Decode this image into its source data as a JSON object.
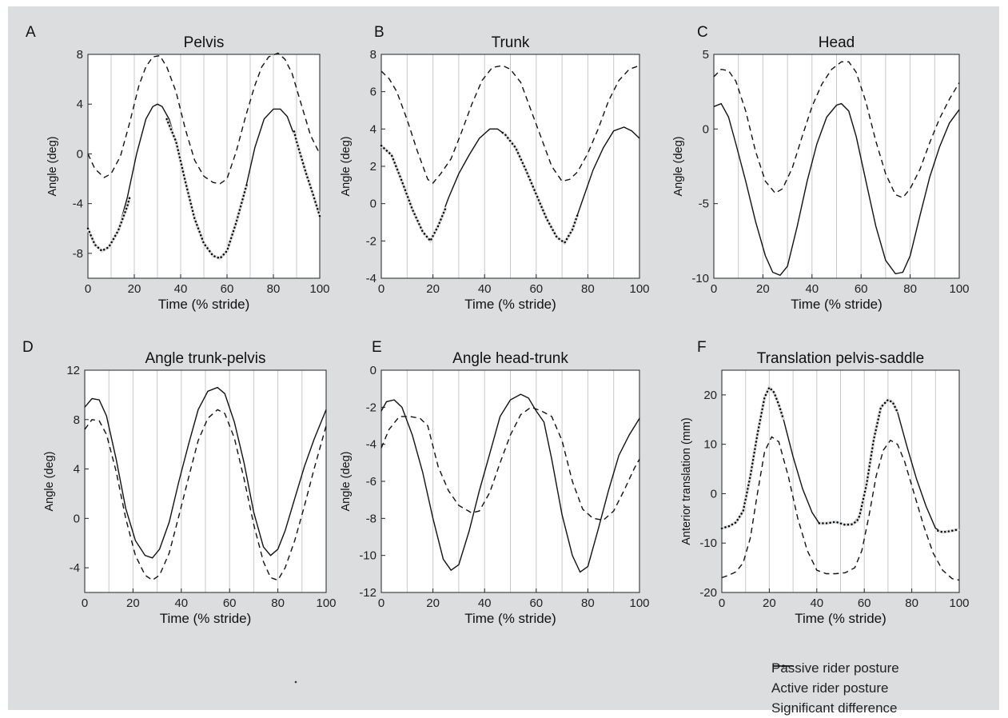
{
  "figure": {
    "background": "#dcdddf",
    "plot_background": "#ffffff",
    "gridline_color": "#c8c8c8",
    "line_color": "#111111"
  },
  "legend": {
    "items": [
      {
        "label": "Passive rider posture",
        "style": "dashed"
      },
      {
        "label": "Active rider posture",
        "style": "solid"
      },
      {
        "label": "Significant difference",
        "style": "dotted"
      }
    ]
  },
  "chart_data": [
    {
      "panel": "A",
      "type": "line",
      "title": "Pelvis",
      "xlabel": "Time (% stride)",
      "ylabel": "Angle (deg)",
      "xlim": [
        0,
        100
      ],
      "ylim": [
        -10,
        8
      ],
      "xticks": [
        0,
        20,
        40,
        60,
        80,
        100
      ],
      "yticks": [
        -8,
        -4,
        0,
        4,
        8
      ],
      "grid": true,
      "series": [
        {
          "style": "dashed",
          "x": [
            0,
            3,
            7,
            10,
            14,
            18,
            22,
            25,
            28,
            31,
            34,
            38,
            42,
            46,
            50,
            54,
            57,
            60,
            64,
            68,
            72,
            75,
            78,
            82,
            85,
            88,
            92,
            96,
            100
          ],
          "y": [
            0,
            -1.2,
            -1.9,
            -1.6,
            -0.2,
            2.5,
            5.5,
            7.0,
            7.8,
            7.9,
            7.0,
            5.0,
            2.0,
            -0.5,
            -1.8,
            -2.3,
            -2.4,
            -2.0,
            0.2,
            3.0,
            5.5,
            7.0,
            7.8,
            8.1,
            7.6,
            6.5,
            4.0,
            1.5,
            0.0
          ]
        },
        {
          "style": "solid",
          "x": [
            0,
            3,
            6,
            9,
            13,
            17,
            21,
            25,
            28,
            30,
            32,
            35,
            38,
            42,
            46,
            50,
            54,
            57,
            60,
            64,
            68,
            72,
            76,
            80,
            83,
            86,
            90,
            94,
            97,
            100
          ],
          "y": [
            -6.0,
            -7.3,
            -7.8,
            -7.5,
            -6.2,
            -3.5,
            0.0,
            2.8,
            3.8,
            4.0,
            3.8,
            2.8,
            1.0,
            -2.2,
            -5.2,
            -7.2,
            -8.2,
            -8.4,
            -7.8,
            -5.5,
            -2.8,
            0.5,
            2.8,
            3.6,
            3.6,
            3.0,
            1.0,
            -1.5,
            -3.2,
            -5.0
          ]
        },
        {
          "style": "dotted",
          "x": [
            0,
            3,
            6,
            9,
            13,
            17,
            18,
            34,
            36,
            38,
            42,
            46,
            50,
            54,
            57,
            60,
            64,
            68,
            68.5,
            89,
            90,
            94,
            97,
            100
          ],
          "y": [
            -6.0,
            -7.3,
            -7.8,
            -7.5,
            -6.2,
            -4.2,
            -3.5,
            2.8,
            1.9,
            1.0,
            -2.2,
            -5.2,
            -7.2,
            -8.2,
            -8.4,
            -7.8,
            -5.5,
            -2.8,
            -2.5,
            1.8,
            1.0,
            -1.5,
            -3.2,
            -5.0
          ]
        }
      ]
    },
    {
      "panel": "B",
      "type": "line",
      "title": "Trunk",
      "xlabel": "Time (% stride)",
      "ylabel": "Angle (deg)",
      "xlim": [
        0,
        100
      ],
      "ylim": [
        -4,
        8
      ],
      "xticks": [
        0,
        20,
        40,
        60,
        80,
        100
      ],
      "yticks": [
        -4,
        -2,
        0,
        2,
        4,
        6,
        8
      ],
      "grid": true,
      "series": [
        {
          "style": "dashed",
          "x": [
            0,
            3,
            6,
            10,
            14,
            18,
            20,
            23,
            27,
            31,
            35,
            39,
            43,
            47,
            50,
            54,
            58,
            62,
            66,
            70,
            73,
            76,
            80,
            84,
            88,
            92,
            96,
            100
          ],
          "y": [
            7.1,
            6.7,
            6.0,
            4.5,
            2.8,
            1.3,
            1.1,
            1.6,
            2.4,
            3.8,
            5.3,
            6.6,
            7.3,
            7.4,
            7.2,
            6.5,
            5.0,
            3.5,
            2.0,
            1.2,
            1.3,
            1.7,
            2.7,
            4.0,
            5.5,
            6.6,
            7.2,
            7.4
          ]
        },
        {
          "style": "solid",
          "x": [
            0,
            4,
            8,
            12,
            16,
            19,
            22,
            26,
            30,
            34,
            38,
            42,
            45,
            48,
            52,
            56,
            60,
            64,
            68,
            71,
            74,
            78,
            82,
            86,
            90,
            94,
            97,
            100
          ],
          "y": [
            3.1,
            2.6,
            1.2,
            -0.3,
            -1.5,
            -2.0,
            -1.2,
            0.3,
            1.6,
            2.6,
            3.5,
            4.0,
            4.0,
            3.7,
            3.0,
            1.8,
            0.5,
            -0.8,
            -1.8,
            -2.1,
            -1.4,
            0.2,
            1.8,
            3.0,
            3.9,
            4.1,
            3.9,
            3.5
          ]
        },
        {
          "style": "dotted",
          "x": [
            0,
            4,
            8,
            12,
            16,
            19,
            22,
            25,
            47,
            48,
            52,
            56,
            60,
            64,
            68,
            71,
            74,
            76
          ],
          "y": [
            3.1,
            2.6,
            1.2,
            -0.3,
            -1.5,
            -2.0,
            -1.2,
            -0.2,
            3.8,
            3.7,
            3.0,
            1.8,
            0.5,
            -0.8,
            -1.8,
            -2.1,
            -1.4,
            -0.6
          ]
        }
      ]
    },
    {
      "panel": "C",
      "type": "line",
      "title": "Head",
      "xlabel": "Time (% stride)",
      "ylabel": "Angle (deg)",
      "xlim": [
        0,
        100
      ],
      "ylim": [
        -10,
        5
      ],
      "xticks": [
        0,
        20,
        40,
        60,
        80,
        100
      ],
      "yticks": [
        -10,
        -5,
        0,
        5
      ],
      "grid": true,
      "series": [
        {
          "style": "dashed",
          "x": [
            0,
            3,
            6,
            9,
            13,
            17,
            21,
            25,
            28,
            32,
            36,
            40,
            44,
            48,
            52,
            55,
            58,
            62,
            66,
            70,
            74,
            77,
            80,
            84,
            88,
            92,
            96,
            100
          ],
          "y": [
            3.5,
            4.0,
            3.9,
            3.2,
            1.2,
            -1.5,
            -3.5,
            -4.3,
            -4.0,
            -2.6,
            -0.5,
            1.5,
            3.0,
            4.0,
            4.5,
            4.5,
            3.8,
            1.8,
            -0.8,
            -3.0,
            -4.4,
            -4.6,
            -4.0,
            -2.7,
            -0.9,
            0.7,
            2.0,
            3.1
          ]
        },
        {
          "style": "solid",
          "x": [
            0,
            3,
            6,
            9,
            13,
            17,
            21,
            24,
            27,
            30,
            34,
            38,
            42,
            46,
            50,
            52,
            55,
            58,
            62,
            66,
            70,
            74,
            77,
            80,
            84,
            88,
            92,
            96,
            100
          ],
          "y": [
            1.5,
            1.7,
            0.8,
            -1.0,
            -3.5,
            -6.2,
            -8.5,
            -9.6,
            -9.8,
            -9.2,
            -6.5,
            -3.5,
            -1.0,
            0.8,
            1.6,
            1.7,
            1.2,
            -0.5,
            -3.5,
            -6.5,
            -8.8,
            -9.7,
            -9.6,
            -8.5,
            -5.8,
            -3.2,
            -1.2,
            0.4,
            1.3
          ]
        }
      ]
    },
    {
      "panel": "D",
      "type": "line",
      "title": "Angle trunk-pelvis",
      "xlabel": "Time (% stride)",
      "ylabel": "Angle (deg)",
      "xlim": [
        0,
        100
      ],
      "ylim": [
        -6,
        12
      ],
      "xticks": [
        0,
        20,
        40,
        60,
        80,
        100
      ],
      "yticks": [
        -4,
        0,
        4,
        8,
        12
      ],
      "grid": true,
      "series": [
        {
          "style": "dashed",
          "x": [
            0,
            3,
            6,
            9,
            13,
            17,
            21,
            25,
            28,
            31,
            35,
            39,
            43,
            47,
            51,
            55,
            58,
            62,
            66,
            70,
            74,
            77,
            80,
            83,
            87,
            91,
            95,
            100
          ],
          "y": [
            7.2,
            8.0,
            7.9,
            6.8,
            3.8,
            0.0,
            -3.0,
            -4.6,
            -5.0,
            -4.6,
            -2.8,
            0.2,
            3.3,
            6.3,
            8.1,
            8.8,
            8.5,
            6.5,
            3.2,
            -0.5,
            -3.5,
            -4.8,
            -5.0,
            -4.0,
            -1.8,
            1.0,
            4.0,
            7.5
          ]
        },
        {
          "style": "solid",
          "x": [
            0,
            3,
            6,
            9,
            13,
            17,
            21,
            25,
            28,
            31,
            35,
            39,
            43,
            47,
            51,
            55,
            58,
            62,
            66,
            70,
            74,
            77,
            80,
            83,
            87,
            91,
            95,
            100
          ],
          "y": [
            9.0,
            9.7,
            9.6,
            8.3,
            4.8,
            0.8,
            -1.8,
            -3.0,
            -3.2,
            -2.5,
            -0.3,
            3.0,
            6.0,
            8.8,
            10.3,
            10.6,
            10.1,
            7.8,
            4.5,
            0.5,
            -2.3,
            -3.0,
            -2.5,
            -1.0,
            1.6,
            4.2,
            6.4,
            8.8
          ]
        }
      ]
    },
    {
      "panel": "E",
      "type": "line",
      "title": "Angle head-trunk",
      "xlabel": "Time (% stride)",
      "ylabel": "Angle (deg)",
      "xlim": [
        0,
        100
      ],
      "ylim": [
        -12,
        0
      ],
      "xticks": [
        0,
        20,
        40,
        60,
        80,
        100
      ],
      "yticks": [
        -12,
        -10,
        -8,
        -6,
        -4,
        -2,
        0
      ],
      "grid": true,
      "series": [
        {
          "style": "dashed",
          "x": [
            0,
            3,
            7,
            11,
            15,
            18,
            22,
            26,
            30,
            35,
            38,
            42,
            46,
            50,
            54,
            58,
            62,
            66,
            70,
            74,
            78,
            82,
            86,
            90,
            94,
            98,
            100
          ],
          "y": [
            -4.2,
            -3.2,
            -2.5,
            -2.5,
            -2.6,
            -3.0,
            -5.2,
            -6.5,
            -7.3,
            -7.7,
            -7.6,
            -6.6,
            -5.0,
            -3.5,
            -2.4,
            -2.0,
            -2.2,
            -2.5,
            -3.8,
            -6.0,
            -7.5,
            -8.0,
            -8.1,
            -7.6,
            -6.5,
            -5.3,
            -4.8
          ]
        },
        {
          "style": "solid",
          "x": [
            0,
            2,
            5,
            8,
            12,
            16,
            20,
            24,
            27,
            30,
            34,
            38,
            42,
            46,
            50,
            54,
            57,
            60,
            63,
            66,
            70,
            74,
            77,
            80,
            84,
            88,
            92,
            96,
            100
          ],
          "y": [
            -2.2,
            -1.7,
            -1.6,
            -2.0,
            -3.5,
            -5.5,
            -8.0,
            -10.2,
            -10.8,
            -10.5,
            -8.7,
            -6.5,
            -4.5,
            -2.5,
            -1.6,
            -1.3,
            -1.5,
            -2.2,
            -2.8,
            -4.8,
            -7.8,
            -10.0,
            -10.9,
            -10.6,
            -8.6,
            -6.5,
            -4.6,
            -3.5,
            -2.6
          ]
        }
      ]
    },
    {
      "panel": "F",
      "type": "line",
      "title": "Translation pelvis-saddle",
      "xlabel": "Time (% stride)",
      "ylabel": "Anterior translation (mm)",
      "xlim": [
        0,
        100
      ],
      "ylim": [
        -20,
        25
      ],
      "xticks": [
        0,
        20,
        40,
        60,
        80,
        100
      ],
      "yticks": [
        -20,
        -10,
        0,
        10,
        20
      ],
      "grid": true,
      "series": [
        {
          "style": "dashed",
          "x": [
            0,
            3,
            6,
            9,
            12,
            15,
            18,
            21,
            24,
            28,
            32,
            36,
            40,
            44,
            48,
            52,
            56,
            59,
            62,
            65,
            68,
            71,
            74,
            77,
            81,
            85,
            89,
            93,
            97,
            100
          ],
          "y": [
            -17.0,
            -16.5,
            -15.8,
            -14.0,
            -9.0,
            0.0,
            8.5,
            11.5,
            10.5,
            3.5,
            -5.0,
            -11.5,
            -15.5,
            -16.2,
            -16.2,
            -16.0,
            -15.0,
            -11.5,
            -4.5,
            3.5,
            8.8,
            10.8,
            10.0,
            6.5,
            0.0,
            -6.5,
            -12.0,
            -15.5,
            -17.2,
            -17.5
          ]
        },
        {
          "style": "solid",
          "x": [
            0,
            3,
            6,
            9,
            12,
            15,
            18,
            20,
            22,
            24,
            26,
            30,
            34,
            38,
            41,
            44,
            48,
            52,
            55,
            58,
            61,
            64,
            67,
            70,
            72,
            74,
            78,
            82,
            86,
            90,
            93,
            96,
            100
          ],
          "y": [
            -7.0,
            -6.6,
            -5.8,
            -3.5,
            3.5,
            12.0,
            19.5,
            21.5,
            20.5,
            18.0,
            15.0,
            7.5,
            1.0,
            -3.8,
            -6.0,
            -6.0,
            -5.7,
            -6.3,
            -6.2,
            -4.5,
            2.0,
            11.0,
            17.5,
            19.0,
            18.5,
            16.5,
            9.5,
            3.0,
            -2.5,
            -7.0,
            -7.8,
            -7.6,
            -7.2
          ]
        },
        {
          "style": "dotted",
          "x": [
            0,
            3,
            6,
            9,
            12,
            15,
            18,
            20,
            22,
            24,
            26,
            41,
            44,
            48,
            52,
            55,
            57,
            58,
            61,
            64,
            67,
            70,
            72,
            74,
            91,
            93,
            96,
            100
          ],
          "y": [
            -7.0,
            -6.6,
            -5.8,
            -3.5,
            3.5,
            12.0,
            19.5,
            21.5,
            20.5,
            18.0,
            15.0,
            -6.0,
            -6.0,
            -5.7,
            -6.3,
            -6.2,
            -5.5,
            -4.5,
            2.0,
            11.0,
            17.5,
            19.0,
            18.5,
            16.5,
            -7.5,
            -7.8,
            -7.6,
            -7.2
          ]
        }
      ]
    }
  ]
}
